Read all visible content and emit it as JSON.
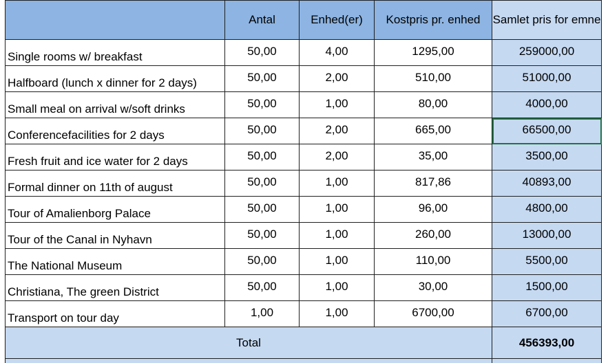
{
  "header": {
    "item": "",
    "antal": "Antal",
    "enhed": "Enhed(er)",
    "kostpris": "Kostpris pr. enhed",
    "samlet": "Samlet pris for emne"
  },
  "rows": [
    {
      "item": "Single rooms w/ breakfast",
      "antal": "50,00",
      "enhed": "4,00",
      "kostpris": "1295,00",
      "samlet": "259000,00"
    },
    {
      "item": "Halfboard (lunch x dinner for 2 days)",
      "antal": "50,00",
      "enhed": "2,00",
      "kostpris": "510,00",
      "samlet": "51000,00"
    },
    {
      "item": "Small meal on arrival w/soft drinks",
      "antal": "50,00",
      "enhed": "1,00",
      "kostpris": "80,00",
      "samlet": "4000,00"
    },
    {
      "item": "Conferencefacilities for 2 days",
      "antal": "50,00",
      "enhed": "2,00",
      "kostpris": "665,00",
      "samlet": "66500,00"
    },
    {
      "item": "Fresh fruit and ice water for 2 days",
      "antal": "50,00",
      "enhed": "2,00",
      "kostpris": "35,00",
      "samlet": "3500,00"
    },
    {
      "item": "Formal dinner on 11th of august",
      "antal": "50,00",
      "enhed": "1,00",
      "kostpris": "817,86",
      "samlet": "40893,00"
    },
    {
      "item": "Tour of Amalienborg Palace",
      "antal": "50,00",
      "enhed": "1,00",
      "kostpris": "96,00",
      "samlet": "4800,00"
    },
    {
      "item": "Tour of the Canal in Nyhavn",
      "antal": "50,00",
      "enhed": "1,00",
      "kostpris": "260,00",
      "samlet": "13000,00"
    },
    {
      "item": "The National Museum",
      "antal": "50,00",
      "enhed": "1,00",
      "kostpris": "110,00",
      "samlet": "5500,00"
    },
    {
      "item": "Christiana, The green District",
      "antal": "50,00",
      "enhed": "1,00",
      "kostpris": "30,00",
      "samlet": "1500,00"
    },
    {
      "item": "Transport on tour day",
      "antal": "1,00",
      "enhed": "1,00",
      "kostpris": "6700,00",
      "samlet": "6700,00"
    }
  ],
  "total": {
    "label": "Total",
    "value": "456393,00"
  },
  "colors": {
    "header_fill": "#8db4e2",
    "light_fill": "#c5d9f1",
    "selection": "#217346"
  },
  "selected_cell": {
    "row": 3,
    "column": "samlet"
  }
}
